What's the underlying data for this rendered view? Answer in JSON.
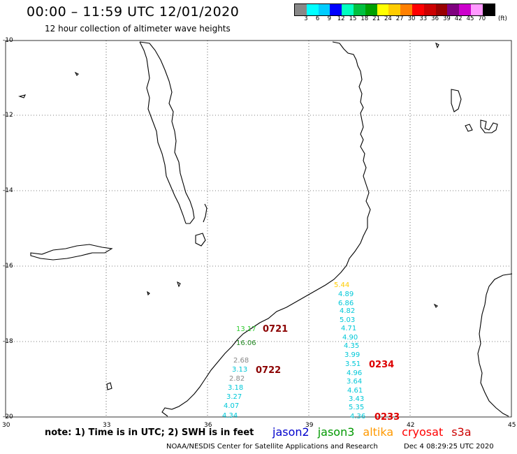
{
  "header": {
    "title": "00:00 – 11:59 UTC 12/01/2020",
    "subtitle": "12 hour collection of altimeter wave heights"
  },
  "color_scale": {
    "colors": [
      "#888888",
      "#00ffff",
      "#00ccff",
      "#0000ff",
      "#00ffc0",
      "#00c040",
      "#00a000",
      "#ffff00",
      "#ffcc00",
      "#ff8000",
      "#ff0000",
      "#cc0000",
      "#990000",
      "#7f007f",
      "#cc00cc",
      "#ff99ff",
      "#000000"
    ],
    "labels": [
      "3",
      "6",
      "9",
      "12",
      "15",
      "18",
      "21",
      "24",
      "27",
      "30",
      "33",
      "36",
      "39",
      "42",
      "45",
      "70"
    ],
    "unit": "(ft)"
  },
  "axes": {
    "lat_labels": [
      "-10",
      "-12",
      "-14",
      "-16",
      "-18",
      "-20"
    ],
    "lon_labels": [
      "30",
      "33",
      "36",
      "39",
      "42",
      "45"
    ]
  },
  "wave_heights": [
    {
      "value": "5.44",
      "color": "#ffcc00"
    },
    {
      "value": "4.89",
      "color": "#00c8d8"
    },
    {
      "value": "6.86",
      "color": "#00c8d8"
    },
    {
      "value": "4.82",
      "color": "#00c8d8"
    },
    {
      "value": "5.03",
      "color": "#00c8d8"
    },
    {
      "value": "4.71",
      "color": "#00c8d8"
    },
    {
      "value": "4.90",
      "color": "#00c8d8"
    },
    {
      "value": "4.35",
      "color": "#00c8d8"
    },
    {
      "value": "3.99",
      "color": "#00c8d8"
    },
    {
      "value": "3.51",
      "color": "#00c8d8"
    },
    {
      "value": "4.96",
      "color": "#00c8d8"
    },
    {
      "value": "3.64",
      "color": "#00c8d8"
    },
    {
      "value": "4.61",
      "color": "#00c8d8"
    },
    {
      "value": "3.43",
      "color": "#00c8d8"
    },
    {
      "value": "5.35",
      "color": "#00c8d8"
    },
    {
      "value": "4.36",
      "color": "#00c8d8"
    },
    {
      "value": "13.17",
      "color": "#33cc33"
    },
    {
      "value": "16.06",
      "color": "#228822"
    },
    {
      "value": "2.68",
      "color": "#888888"
    },
    {
      "value": "3.13",
      "color": "#00c8d8"
    },
    {
      "value": "2.82",
      "color": "#888888"
    },
    {
      "value": "3.18",
      "color": "#00c8d8"
    },
    {
      "value": "3.27",
      "color": "#00c8d8"
    },
    {
      "value": "4.07",
      "color": "#00c8d8"
    },
    {
      "value": "4.34",
      "color": "#00c8d8"
    }
  ],
  "pass_labels": [
    {
      "text": "0721",
      "color": "#8b0000"
    },
    {
      "text": "0722",
      "color": "#8b0000"
    },
    {
      "text": "0234",
      "color": "#dd0000"
    },
    {
      "text": "0233",
      "color": "#dd0000"
    }
  ],
  "footer": {
    "note": "note: 1) Time is in UTC; 2) SWH is in feet",
    "legend": [
      {
        "name": "jason2",
        "color": "#0000cc"
      },
      {
        "name": "jason3",
        "color": "#009900"
      },
      {
        "name": "altika",
        "color": "#ff9900"
      },
      {
        "name": "cryosat",
        "color": "#ff0000"
      },
      {
        "name": "s3a",
        "color": "#cc0000"
      }
    ],
    "credit": "NOAA/NESDIS Center for Satellite Applications and Research",
    "timestamp": "Dec  4 08:29:25 UTC 2020"
  }
}
